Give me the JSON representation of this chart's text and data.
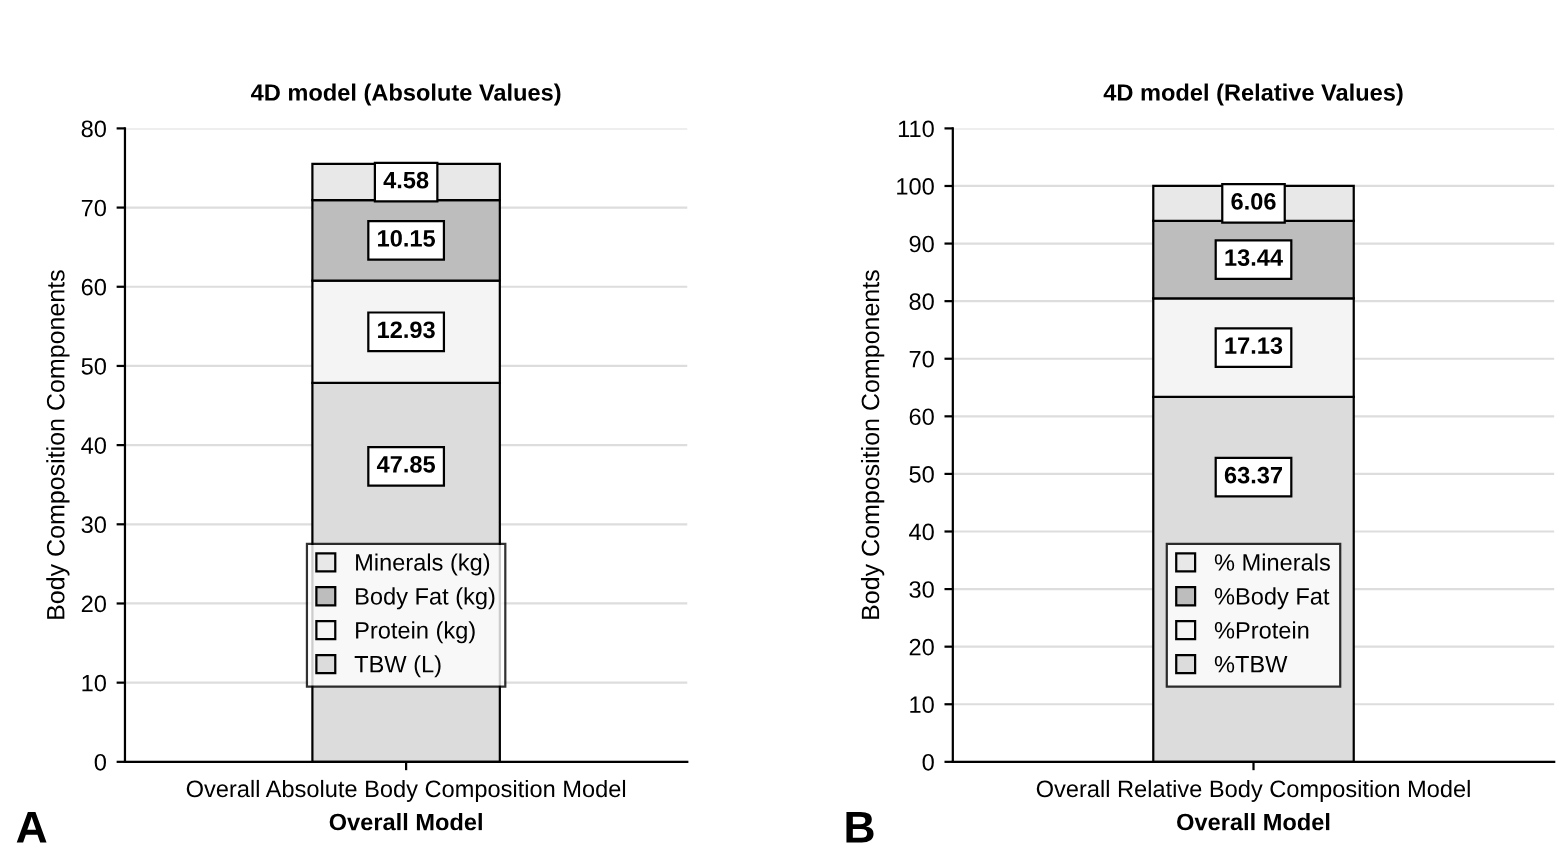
{
  "chart_data": [
    {
      "type": "bar",
      "stacked": true,
      "title": "4D model (Absolute Values)",
      "xlabel": "Overall Model",
      "ylabel": "Body Composition Components",
      "categories": [
        "Overall Absolute Body Composition Model"
      ],
      "ylim": [
        0,
        80
      ],
      "yticks": [
        0,
        10,
        20,
        30,
        40,
        50,
        60,
        70,
        80
      ],
      "grid": "y",
      "legend": "bottom",
      "data_labels": true,
      "annotations": [
        "A"
      ],
      "series": [
        {
          "name": "TBW (L)",
          "color": "#dcdcdc",
          "values": [
            47.85
          ]
        },
        {
          "name": "Protein (kg)",
          "color": "#f4f4f4",
          "values": [
            12.93
          ]
        },
        {
          "name": "Body Fat (kg)",
          "color": "#bdbdbd",
          "values": [
            10.15
          ]
        },
        {
          "name": "Minerals (kg)",
          "color": "#e8e8e8",
          "values": [
            4.58
          ]
        }
      ]
    },
    {
      "type": "bar",
      "stacked": true,
      "title": "4D model (Relative Values)",
      "xlabel": "Overall Model",
      "ylabel": "Body Composition Components",
      "categories": [
        "Overall Relative Body Composition Model"
      ],
      "ylim": [
        0,
        110
      ],
      "yticks": [
        0,
        10,
        20,
        30,
        40,
        50,
        60,
        70,
        80,
        90,
        100,
        110
      ],
      "grid": "y",
      "legend": "bottom",
      "data_labels": true,
      "annotations": [
        "B"
      ],
      "series": [
        {
          "name": "%TBW",
          "color": "#dcdcdc",
          "values": [
            63.37
          ]
        },
        {
          "name": "%Protein",
          "color": "#f4f4f4",
          "values": [
            17.13
          ]
        },
        {
          "name": "%Body Fat",
          "color": "#bdbdbd",
          "values": [
            13.44
          ]
        },
        {
          "name": "% Minerals",
          "color": "#e8e8e8",
          "values": [
            6.06
          ]
        }
      ]
    }
  ]
}
